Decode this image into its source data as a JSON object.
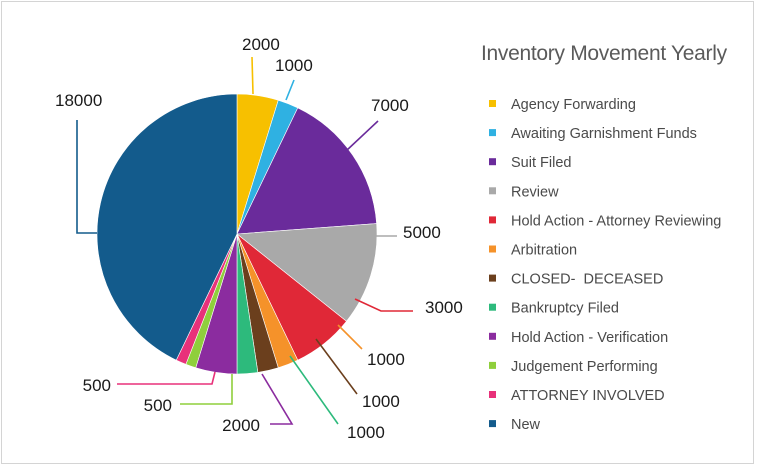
{
  "chart_data": {
    "type": "pie",
    "title": "Inventory Movement Yearly",
    "start_angle_deg": 0,
    "direction": "clockwise",
    "slices": [
      {
        "label": "Agency Forwarding",
        "value": 2000,
        "display": "2000",
        "color": "#f7c000"
      },
      {
        "label": "Awaiting Garnishment Funds",
        "value": 1000,
        "display": "1000",
        "color": "#2fb1e2"
      },
      {
        "label": "Suit Filed",
        "value": 7000,
        "display": "7000",
        "color": "#6a2b9b"
      },
      {
        "label": "Review",
        "value": 5000,
        "display": "5000",
        "color": "#a9a9a9"
      },
      {
        "label": "Hold Action - Attorney Reviewing",
        "value": 3000,
        "display": "3000",
        "color": "#e02837"
      },
      {
        "label": "Arbitration",
        "value": 1000,
        "display": "1000",
        "color": "#f5922a"
      },
      {
        "label": "CLOSED-  DECEASED",
        "value": 1000,
        "display": "1000",
        "color": "#6b3f1d"
      },
      {
        "label": "Bankruptcy Filed",
        "value": 1000,
        "display": "1000",
        "color": "#2dba7c"
      },
      {
        "label": "Hold Action - Verification",
        "value": 2000,
        "display": "2000",
        "color": "#8b2c9f"
      },
      {
        "label": "Judgement Performing",
        "value": 500,
        "display": "500",
        "color": "#8fcf3c"
      },
      {
        "label": "ATTORNEY INVOLVED",
        "value": 500,
        "display": "500",
        "color": "#e8317a"
      },
      {
        "label": "New",
        "value": 18000,
        "display": "18000",
        "color": "#135b8c"
      }
    ],
    "legend_position": "right"
  }
}
